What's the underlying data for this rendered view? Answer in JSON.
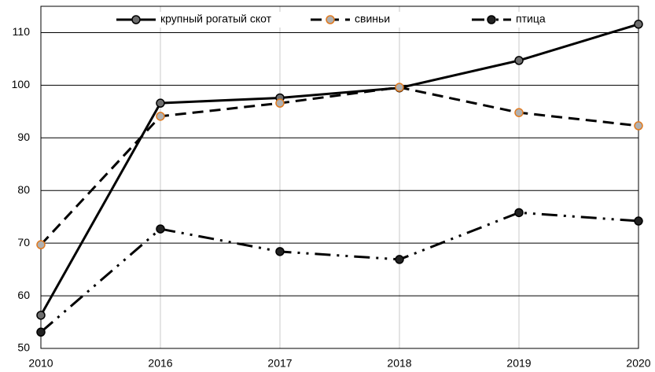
{
  "chart_data": {
    "type": "line",
    "categories": [
      "2010",
      "2016",
      "2017",
      "2018",
      "2019",
      "2020"
    ],
    "series": [
      {
        "name": "крупный рогатый скот",
        "color": "#000000",
        "marker_color": "#6e6e6e",
        "marker_edge": "#000000",
        "line_style": "solid",
        "values": [
          56.3,
          96.6,
          97.6,
          99.5,
          104.7,
          111.6
        ]
      },
      {
        "name": "свиньи",
        "color": "#000000",
        "marker_color": "#b0b0b0",
        "marker_edge": "#e07a20",
        "line_style": "dashed",
        "values": [
          69.7,
          94.1,
          96.6,
          99.6,
          94.8,
          92.3
        ]
      },
      {
        "name": "птица",
        "color": "#000000",
        "marker_color": "#222222",
        "marker_edge": "#000000",
        "line_style": "dashdotdot",
        "values": [
          53.1,
          72.7,
          68.4,
          66.9,
          75.8,
          74.2
        ]
      }
    ],
    "ylim": [
      50,
      115
    ],
    "yticks": [
      50,
      60,
      70,
      80,
      90,
      100,
      110
    ],
    "grid": true,
    "legend": "top"
  }
}
